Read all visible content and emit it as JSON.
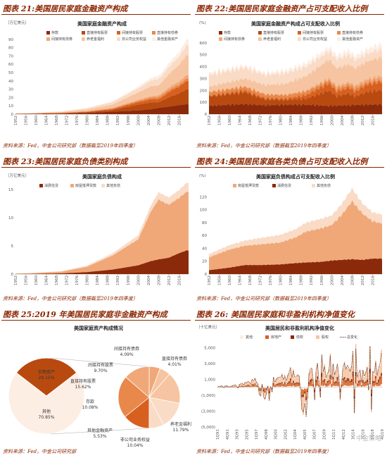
{
  "colors": {
    "c1": "#8b2a0a",
    "c2": "#b84a10",
    "c3": "#d8601f",
    "c4": "#e8884a",
    "c5": "#f0a878",
    "c6": "#f6c4a0",
    "c7": "#fadbc6",
    "c8": "#fdeee4",
    "line": "#5a1a00",
    "title": "#8b2500"
  },
  "watermark": "中金策略",
  "chart_data": [
    {
      "id": "p21",
      "type": "area",
      "panel_title": "图表 21:美国居民家庭金融资产构成",
      "chart_title": "美国家庭金融资产构成",
      "unit": "（万亿美元）",
      "ylim": [
        0,
        100
      ],
      "yticks": [
        0,
        10,
        20,
        30,
        40,
        50,
        60,
        70,
        80,
        90
      ],
      "xticks": [
        "1952",
        "1956",
        "1960",
        "1964",
        "1968",
        "1972",
        "1976",
        "1980",
        "1984",
        "1988",
        "1992",
        "1996",
        "2000",
        "2004",
        "2008",
        "2012",
        "2016"
      ],
      "legend": [
        "存款",
        "直接持有股票",
        "间接持有股票",
        "直接持有债券",
        "间接持有债券",
        "养老金福利",
        "非公司业务权益",
        "其他金融资产"
      ],
      "x": [
        1952,
        1960,
        1970,
        1980,
        1990,
        2000,
        2005,
        2008,
        2009,
        2013,
        2016,
        2019
      ],
      "series": [
        {
          "name": "存款",
          "values": [
            0.2,
            0.3,
            0.6,
            1.5,
            3,
            4.5,
            6,
            7.5,
            7.8,
            9.5,
            11,
            12
          ]
        },
        {
          "name": "直接持有股票",
          "values": [
            0.2,
            0.4,
            0.6,
            1,
            2,
            7,
            8,
            7,
            8,
            12,
            14,
            18
          ]
        },
        {
          "name": "间接持有股票",
          "values": [
            0,
            0.1,
            0.2,
            0.3,
            1,
            3,
            4,
            3.5,
            4,
            7,
            8,
            10
          ]
        },
        {
          "name": "直接持有债券",
          "values": [
            0.1,
            0.2,
            0.3,
            0.5,
            1,
            1.5,
            2,
            2.5,
            2.6,
            2.5,
            2.5,
            3
          ]
        },
        {
          "name": "间接持有债券",
          "values": [
            0,
            0,
            0.1,
            0.2,
            0.5,
            1,
            1.5,
            2,
            2.2,
            3,
            3.5,
            4
          ]
        },
        {
          "name": "养老金福利",
          "values": [
            0.1,
            0.3,
            0.8,
            2,
            4,
            9,
            12,
            12,
            13,
            17,
            20,
            24
          ]
        },
        {
          "name": "非公司业务权益",
          "values": [
            0.2,
            0.3,
            0.6,
            1.5,
            3,
            5,
            7,
            8,
            7.5,
            9,
            10,
            12
          ]
        },
        {
          "name": "其他金融资产",
          "values": [
            0.1,
            0.2,
            0.3,
            0.5,
            1,
            2,
            3,
            4,
            4,
            5,
            5.5,
            7
          ]
        }
      ],
      "source": "资料来源：Fed，中金公司研究部（数据截至2019年四季度）"
    },
    {
      "id": "p22",
      "type": "area",
      "panel_title": "图表 22:美国居民家庭金融资产占可支配收入比例",
      "chart_title": "美国家庭金融资产构成占可支配收入比例",
      "unit": "(%)",
      "ylim": [
        0,
        700
      ],
      "yticks": [
        0,
        100,
        200,
        300,
        400,
        500,
        600
      ],
      "xticks": [
        "1952",
        "1956",
        "1960",
        "1964",
        "1968",
        "1972",
        "1976",
        "1980",
        "1984",
        "1988",
        "1992",
        "1996",
        "2000",
        "2004",
        "2008",
        "2012",
        "2016"
      ],
      "legend": [
        "存款",
        "直接持有股票",
        "间接持有股票",
        "直接持有债券",
        "间接持有债券",
        "养老金福利",
        "非公司业务权益",
        "其他金融资产"
      ],
      "x": [
        1952,
        1960,
        1966,
        1974,
        1982,
        1990,
        1999,
        2002,
        2007,
        2009,
        2014,
        2019
      ],
      "series": [
        {
          "name": "存款",
          "values": [
            70,
            80,
            85,
            75,
            80,
            80,
            70,
            72,
            75,
            78,
            80,
            82
          ]
        },
        {
          "name": "直接持有股票",
          "values": [
            80,
            90,
            100,
            50,
            40,
            50,
            130,
            80,
            100,
            70,
            110,
            120
          ]
        },
        {
          "name": "间接持有股票",
          "values": [
            5,
            10,
            15,
            10,
            10,
            30,
            60,
            40,
            50,
            40,
            60,
            70
          ]
        },
        {
          "name": "直接持有债券",
          "values": [
            30,
            30,
            30,
            30,
            30,
            30,
            25,
            25,
            25,
            28,
            20,
            20
          ]
        },
        {
          "name": "间接持有债券",
          "values": [
            5,
            5,
            5,
            5,
            5,
            10,
            15,
            20,
            20,
            22,
            25,
            28
          ]
        },
        {
          "name": "养老金福利",
          "values": [
            40,
            55,
            65,
            75,
            90,
            120,
            160,
            150,
            150,
            145,
            150,
            155
          ]
        },
        {
          "name": "非公司业务权益",
          "values": [
            100,
            95,
            90,
            85,
            90,
            80,
            70,
            75,
            80,
            70,
            65,
            70
          ]
        },
        {
          "name": "其他金融资产",
          "values": [
            20,
            20,
            20,
            20,
            25,
            30,
            35,
            35,
            38,
            35,
            40,
            45
          ]
        }
      ],
      "source": "资料来源：Fed，中金公司研究部（数据截至2019年四季度）"
    },
    {
      "id": "p23",
      "type": "area",
      "panel_title": "图表 23:美国居民家庭负债类别构成",
      "chart_title": "美国家庭负债构成",
      "unit": "（万亿美元）",
      "ylim": [
        0,
        16
      ],
      "yticks": [
        0,
        5,
        10,
        15
      ],
      "xticks": [
        "1952",
        "1956",
        "1960",
        "1964",
        "1968",
        "1972",
        "1976",
        "1980",
        "1984",
        "1988",
        "1992",
        "1996",
        "2000",
        "2004",
        "2008",
        "2012",
        "2016"
      ],
      "legend": [
        "消费信贷",
        "房屋抵押贷款",
        "其他负债"
      ],
      "x": [
        1952,
        1960,
        1970,
        1980,
        1990,
        2000,
        2005,
        2008,
        2012,
        2016,
        2019
      ],
      "series": [
        {
          "name": "消费信贷",
          "values": [
            0.02,
            0.05,
            0.13,
            0.35,
            0.8,
            1.55,
            2.3,
            2.6,
            2.9,
            3.7,
            4.2
          ]
        },
        {
          "name": "房屋抵押贷款",
          "values": [
            0.05,
            0.14,
            0.3,
            0.95,
            2.5,
            4.6,
            8.8,
            10.6,
            9.4,
            9.8,
            10.4
          ]
        },
        {
          "name": "其他负债",
          "values": [
            0.03,
            0.05,
            0.1,
            0.2,
            0.4,
            0.7,
            1.1,
            1.3,
            1.3,
            1.4,
            1.6
          ]
        }
      ],
      "source": "资料来源：Fed，中金公司研究部（数据截至2019年四季度）"
    },
    {
      "id": "p24",
      "type": "area",
      "panel_title": "图表 24:美国居民家庭各类负债占可支配收入比例",
      "chart_title": "美国家庭负债构成占可支配收入比例",
      "unit": "(%)",
      "ylim": [
        0,
        140
      ],
      "yticks": [
        0,
        20,
        40,
        60,
        80,
        100,
        120
      ],
      "xticks": [
        "1952",
        "1956",
        "1960",
        "1964",
        "1968",
        "1972",
        "1976",
        "1980",
        "1984",
        "1988",
        "1992",
        "1996",
        "2000",
        "2004",
        "2008",
        "2012",
        "2016"
      ],
      "legend": [
        "房屋抵押贷款",
        "消费信贷",
        "其他负债"
      ],
      "x": [
        1952,
        1960,
        1966,
        1972,
        1980,
        1986,
        1990,
        1996,
        2000,
        2004,
        2008,
        2012,
        2016,
        2019
      ],
      "series": [
        {
          "name": "消费信贷",
          "values": [
            6,
            10,
            14,
            14,
            15,
            17,
            18,
            19,
            21,
            22,
            23,
            22,
            24,
            24
          ]
        },
        {
          "name": "房屋抵押贷款",
          "values": [
            20,
            28,
            30,
            32,
            34,
            40,
            48,
            52,
            55,
            70,
            90,
            72,
            58,
            55
          ]
        },
        {
          "name": "其他负债",
          "values": [
            5,
            7,
            8,
            10,
            12,
            13,
            14,
            15,
            15,
            17,
            20,
            16,
            14,
            14
          ]
        }
      ],
      "source": "资料来源：Fed，中金公司研究部（数据截至2019年四季度）"
    },
    {
      "id": "p25",
      "type": "pie",
      "panel_title": "图表 25:2019 年美国居民家庭非金融资产构成",
      "chart_title": "美国家庭资产构成情况",
      "outer": [
        {
          "label": "实物资产",
          "value": 29.15,
          "text": "29.15%"
        },
        {
          "label": "其他",
          "value": 70.85,
          "text": "70.85%"
        }
      ],
      "inner": [
        {
          "label": "间接持有债券",
          "value": 4.09,
          "text": "4.09%"
        },
        {
          "label": "直接持有债券",
          "value": 4.01,
          "text": "4.01%"
        },
        {
          "label": "养老金福利",
          "value": 11.79,
          "text": "11.79%"
        },
        {
          "label": "非公司业务权益",
          "value": 10.04,
          "text": "10.04%"
        },
        {
          "label": "其他金融资产",
          "value": 5.53,
          "text": "5.53%"
        },
        {
          "label": "存款",
          "value": 10.08,
          "text": "10.08%"
        },
        {
          "label": "直接持有股票",
          "value": 15.62,
          "text": "15.62%"
        },
        {
          "label": "间接持有股票",
          "value": 9.7,
          "text": "9.70%"
        }
      ],
      "source": "资料来源：Fed，中金公司研究部"
    },
    {
      "id": "p26",
      "type": "bar",
      "panel_title": "图表 26: 美国居民家庭和非盈利机构净值变化",
      "chart_title": "美国居民和非盈利机构净值变化",
      "unit": "（十亿美元）",
      "ylim": [
        -5000,
        6000
      ],
      "yticks": [
        5000,
        3000,
        1000,
        -1000,
        -3000,
        -5000
      ],
      "ytick_labels": [
        "5,000",
        "3,000",
        "1,000",
        "(1,000)",
        "(3,000)",
        "(5,000)"
      ],
      "xticks": [
        "1Q91",
        "4Q91",
        "3Q93",
        "2Q95",
        "1Q97",
        "4Q98",
        "3Q00",
        "2Q02",
        "1Q04",
        "4Q05",
        "3Q07",
        "2Q09",
        "1Q11",
        "4Q12",
        "3Q14",
        "2Q16",
        "1Q18",
        "4Q19"
      ],
      "legend": [
        "其他",
        "房地产",
        "债权",
        "股权",
        "总变化"
      ],
      "x_start": "1Q91",
      "x_end": "4Q19",
      "total": [
        120,
        80,
        200,
        150,
        -50,
        180,
        220,
        100,
        60,
        140,
        210,
        250,
        300,
        180,
        -120,
        380,
        420,
        520,
        300,
        610,
        560,
        760,
        640,
        420,
        980,
        840,
        1120,
        620,
        450,
        -950,
        -1050,
        380,
        -1200,
        -1500,
        -830,
        180,
        -1700,
        90,
        -580,
        1300,
        620,
        1020,
        1180,
        1290,
        1240,
        1560,
        990,
        1470,
        820,
        1420,
        1890,
        2520,
        1230,
        2080,
        1260,
        1370,
        1500,
        1440,
        -210,
        -2820,
        -3100,
        -1980,
        -3730,
        -1380,
        1620,
        2320,
        2410,
        890,
        -1560,
        2180,
        3050,
        820,
        -1280,
        4120,
        1980,
        2630,
        1180,
        1740,
        2100,
        3980,
        880,
        2960,
        1620,
        2010,
        2970,
        1480,
        -1470,
        720,
        2560,
        3010,
        2290,
        2780,
        2450,
        1990,
        2650,
        4580,
        -3250,
        4850,
        1200,
        1850,
        2100,
        600,
        2200,
        1400,
        1800,
        2500,
        -400,
        5200,
        -2800,
        2000,
        1800,
        3200,
        1500,
        2400,
        3000,
        4300
      ],
      "source": "资料来源：Fed，中金公司研究部（数据截至2019年四季度）"
    }
  ]
}
